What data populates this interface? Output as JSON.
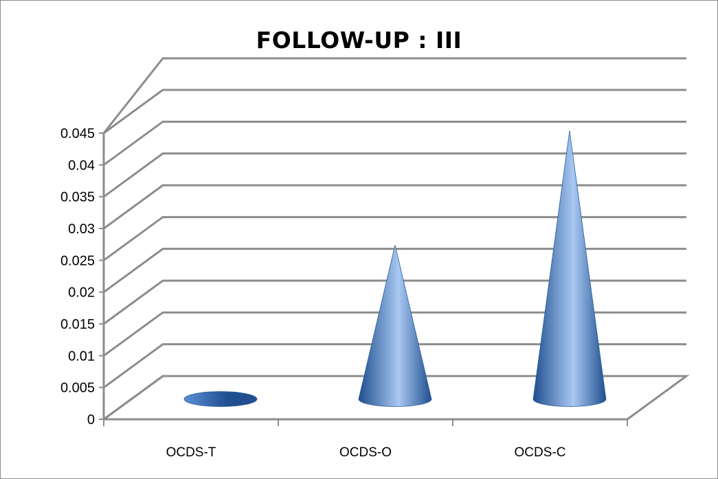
{
  "chart_data": {
    "type": "bar",
    "style": "3d-cone",
    "title": "FOLLOW-UP : III",
    "xlabel": "",
    "ylabel": "",
    "categories": [
      "OCDS-T",
      "OCDS-O",
      "OCDS-C"
    ],
    "values": [
      0.0,
      0.024,
      0.042
    ],
    "ylim": [
      0,
      0.045
    ],
    "yticks": [
      "0",
      "0.005",
      "0.01",
      "0.015",
      "0.02",
      "0.025",
      "0.03",
      "0.035",
      "0.04",
      "0.045"
    ],
    "grid": true,
    "legend": "none",
    "colors": {
      "cone_light": "#a9c8f2",
      "cone_mid": "#5b8fd6",
      "cone_dark": "#1f4f8f",
      "grid": "#8c8c8c"
    }
  }
}
